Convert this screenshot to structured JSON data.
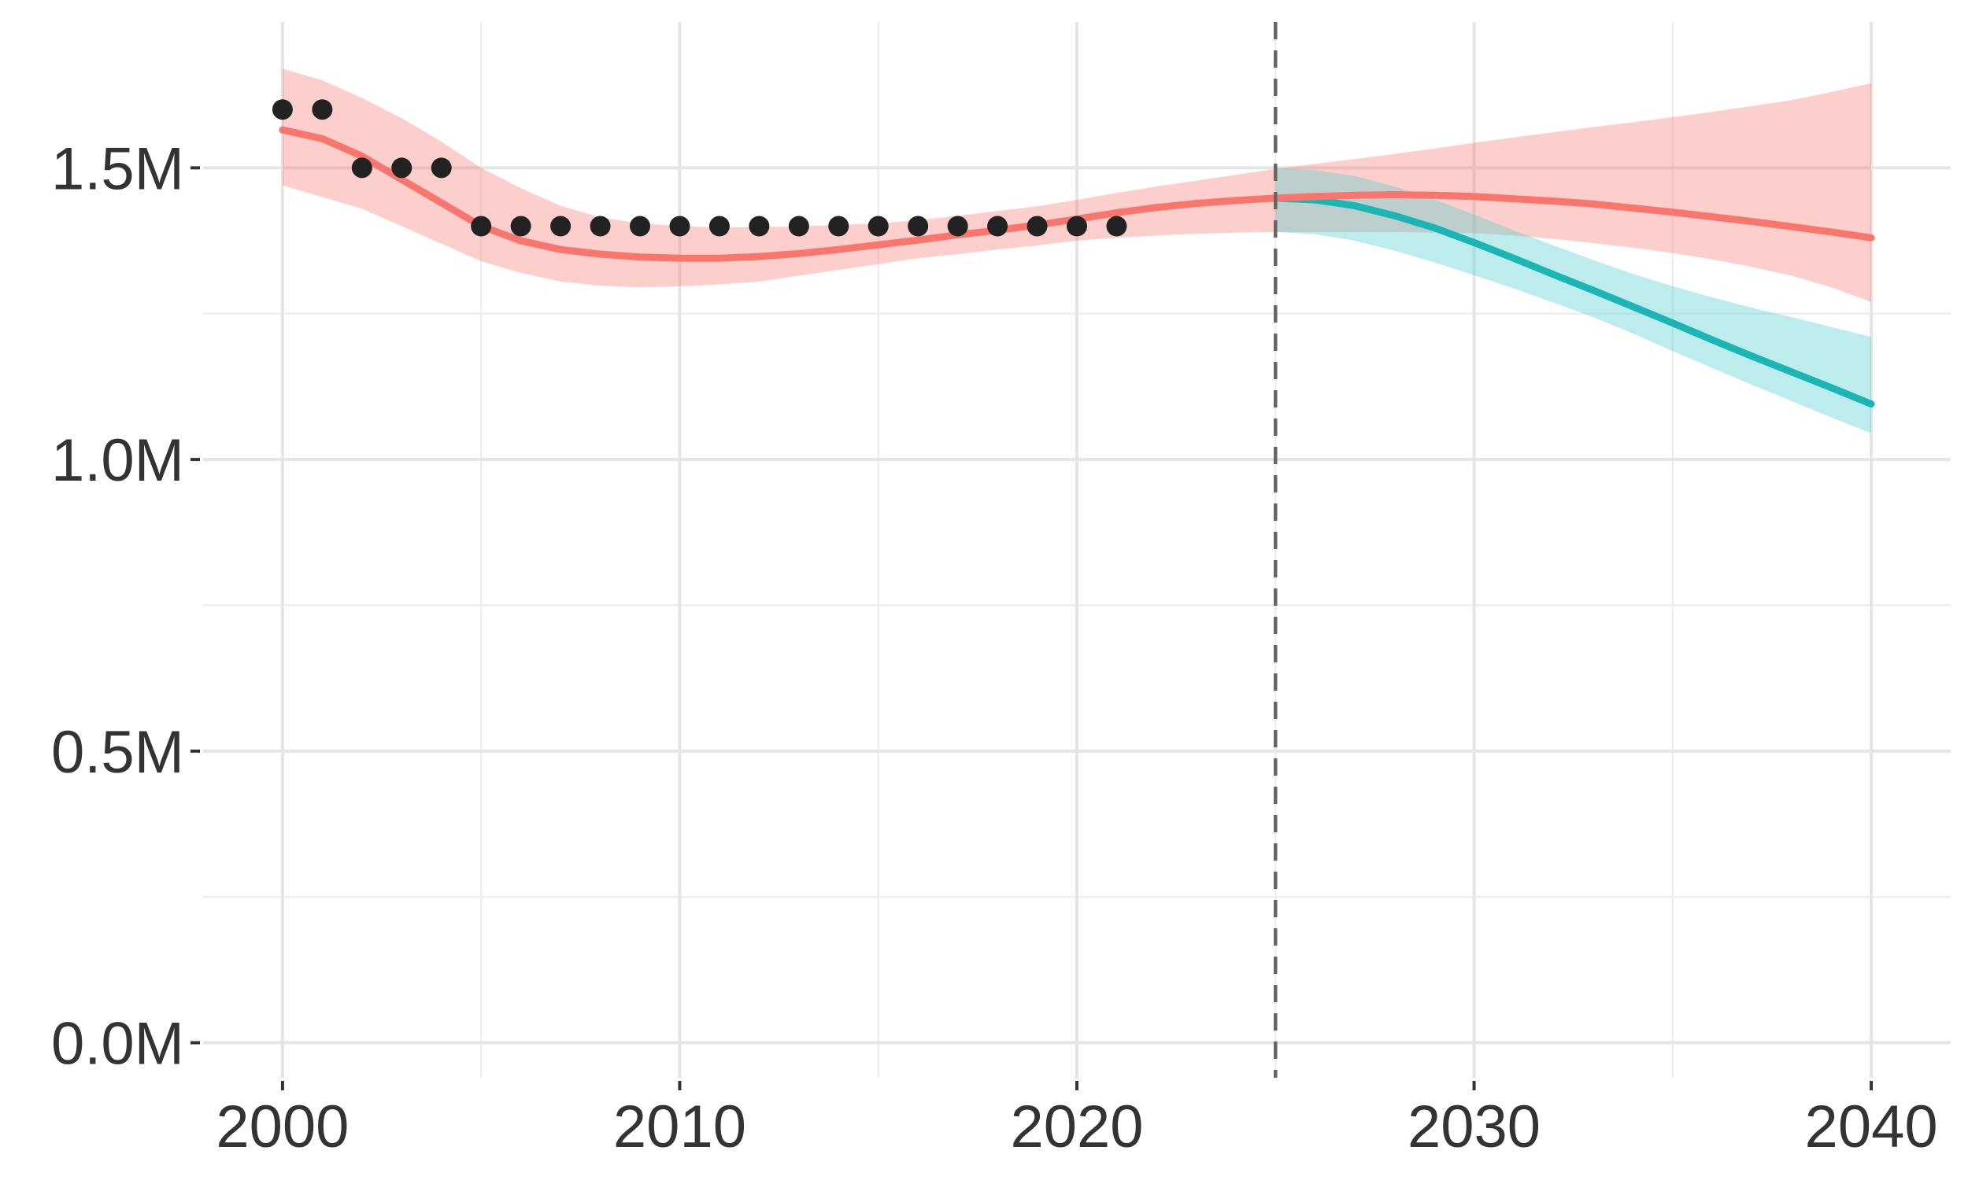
{
  "chart_data": {
    "type": "line",
    "title": "",
    "xlabel": "",
    "ylabel": "",
    "xlim": [
      1998,
      2042
    ],
    "ylim": [
      -0.06,
      1.75
    ],
    "x_ticks": [
      2000,
      2010,
      2020,
      2030,
      2040
    ],
    "x_tick_labels": [
      "2000",
      "2010",
      "2020",
      "2030",
      "2040"
    ],
    "y_ticks": [
      0.0,
      0.5,
      1.0,
      1.5
    ],
    "y_tick_labels": [
      "0.0M",
      "0.5M",
      "1.0M",
      "1.5M"
    ],
    "y_unit": "millions",
    "grid": true,
    "legend": "none",
    "vertical_reference_line": {
      "x": 2025,
      "style": "dashed",
      "color": "#666666"
    },
    "observed_points": {
      "color": "#222222",
      "x": [
        2000,
        2001,
        2002,
        2003,
        2004,
        2005,
        2006,
        2007,
        2008,
        2009,
        2010,
        2011,
        2012,
        2013,
        2014,
        2015,
        2016,
        2017,
        2018,
        2019,
        2020,
        2021
      ],
      "y": [
        1.6,
        1.6,
        1.5,
        1.5,
        1.5,
        1.4,
        1.4,
        1.4,
        1.4,
        1.4,
        1.4,
        1.4,
        1.4,
        1.4,
        1.4,
        1.4,
        1.4,
        1.4,
        1.4,
        1.4,
        1.4,
        1.4
      ]
    },
    "series": [
      {
        "color": "#F8766D",
        "band_color": "#F8766D",
        "band_opacity": 0.35,
        "x": [
          2000,
          2001,
          2002,
          2003,
          2004,
          2005,
          2006,
          2007,
          2008,
          2009,
          2010,
          2011,
          2012,
          2013,
          2014,
          2015,
          2016,
          2017,
          2018,
          2019,
          2020,
          2021,
          2022,
          2023,
          2024,
          2025,
          2026,
          2027,
          2028,
          2029,
          2030,
          2031,
          2032,
          2033,
          2034,
          2035,
          2036,
          2037,
          2038,
          2039,
          2040
        ],
        "y": [
          1.565,
          1.55,
          1.52,
          1.48,
          1.44,
          1.4,
          1.375,
          1.36,
          1.352,
          1.347,
          1.345,
          1.345,
          1.348,
          1.353,
          1.36,
          1.368,
          1.376,
          1.385,
          1.393,
          1.402,
          1.412,
          1.423,
          1.432,
          1.439,
          1.444,
          1.448,
          1.451,
          1.453,
          1.454,
          1.453,
          1.451,
          1.447,
          1.443,
          1.438,
          1.431,
          1.424,
          1.416,
          1.408,
          1.399,
          1.39,
          1.38
        ],
        "lower": [
          1.47,
          1.45,
          1.43,
          1.4,
          1.37,
          1.34,
          1.32,
          1.305,
          1.298,
          1.295,
          1.297,
          1.3,
          1.305,
          1.315,
          1.325,
          1.335,
          1.345,
          1.352,
          1.36,
          1.367,
          1.375,
          1.38,
          1.384,
          1.387,
          1.389,
          1.39,
          1.39,
          1.39,
          1.39,
          1.389,
          1.388,
          1.384,
          1.378,
          1.371,
          1.363,
          1.354,
          1.343,
          1.33,
          1.315,
          1.295,
          1.27
        ],
        "upper": [
          1.67,
          1.65,
          1.62,
          1.585,
          1.545,
          1.5,
          1.465,
          1.435,
          1.415,
          1.405,
          1.4,
          1.398,
          1.398,
          1.4,
          1.402,
          1.405,
          1.41,
          1.418,
          1.426,
          1.434,
          1.445,
          1.457,
          1.468,
          1.478,
          1.488,
          1.498,
          1.507,
          1.515,
          1.524,
          1.533,
          1.543,
          1.552,
          1.561,
          1.57,
          1.578,
          1.587,
          1.596,
          1.606,
          1.616,
          1.63,
          1.645
        ]
      },
      {
        "color": "#1CB5B5",
        "band_color": "#59CFCF",
        "band_opacity": 0.4,
        "x": [
          2025,
          2026,
          2027,
          2028,
          2029,
          2030,
          2031,
          2032,
          2033,
          2034,
          2035,
          2036,
          2037,
          2038,
          2039,
          2040
        ],
        "y": [
          1.448,
          1.445,
          1.435,
          1.418,
          1.397,
          1.372,
          1.345,
          1.317,
          1.29,
          1.262,
          1.234,
          1.205,
          1.177,
          1.15,
          1.123,
          1.095
        ],
        "lower": [
          1.39,
          1.386,
          1.375,
          1.358,
          1.338,
          1.316,
          1.293,
          1.269,
          1.244,
          1.216,
          1.186,
          1.157,
          1.128,
          1.1,
          1.072,
          1.045
        ],
        "upper": [
          1.5,
          1.496,
          1.486,
          1.468,
          1.446,
          1.42,
          1.393,
          1.367,
          1.342,
          1.318,
          1.297,
          1.278,
          1.26,
          1.244,
          1.227,
          1.21
        ]
      }
    ]
  }
}
